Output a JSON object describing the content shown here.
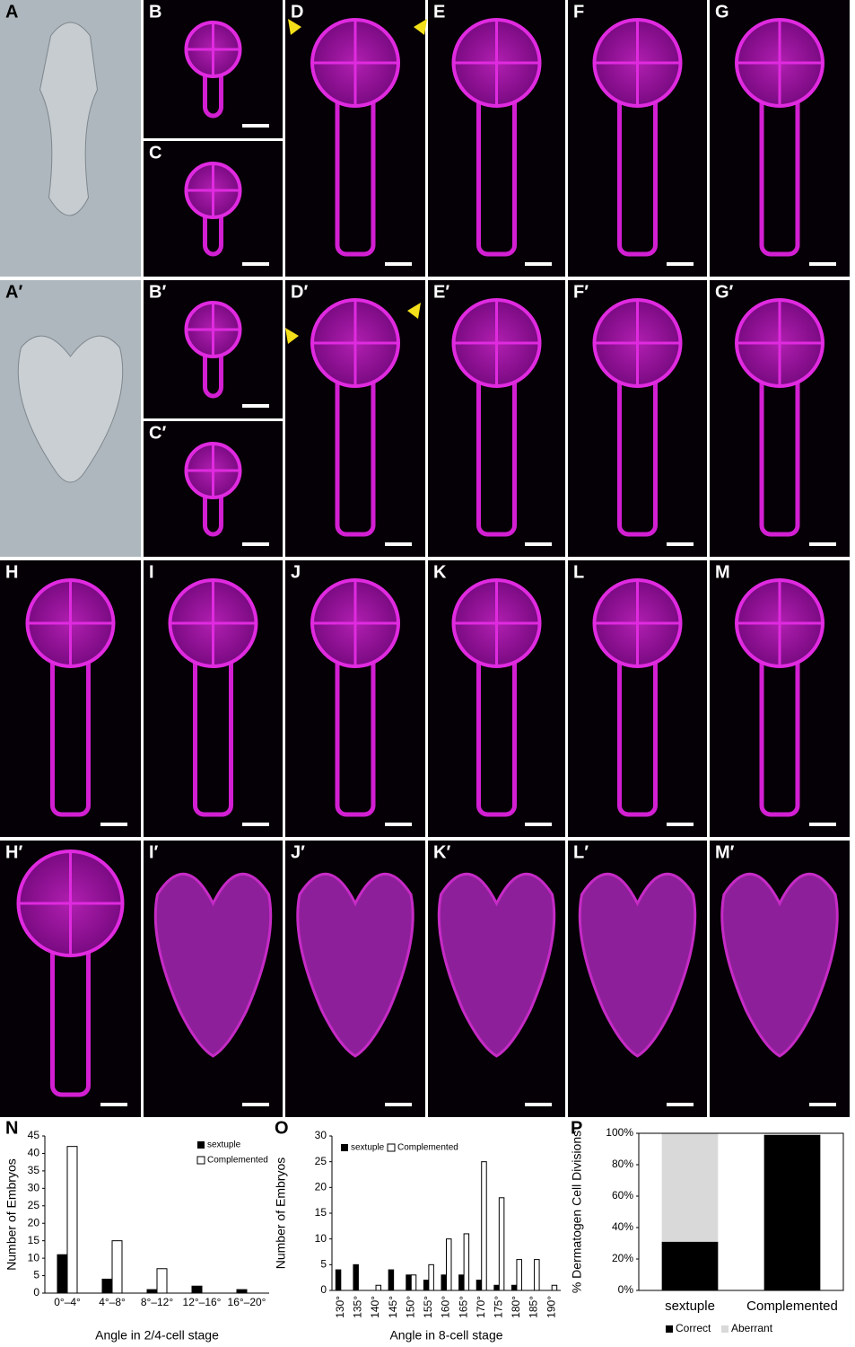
{
  "panels": [
    "A",
    "B",
    "C",
    "D",
    "E",
    "F",
    "G",
    "A′",
    "B′",
    "C′",
    "D′",
    "E′",
    "F′",
    "G′",
    "H",
    "I",
    "J",
    "K",
    "L",
    "M",
    "H′",
    "I′",
    "J′",
    "K′",
    "L′",
    "M′"
  ],
  "chart_data": [
    {
      "type": "bar",
      "label": "N",
      "xlabel": "Angle in 2/4-cell stage",
      "ylabel": "Number of Embryos",
      "categories": [
        "0°–4°",
        "4°–8°",
        "8°–12°",
        "12°–16°",
        "16°–20°"
      ],
      "series": [
        {
          "name": "sextuple",
          "color": "#000000",
          "values": [
            11,
            4,
            1,
            2,
            1
          ]
        },
        {
          "name": "Complemented",
          "color": "#ffffff",
          "values": [
            42,
            15,
            7,
            0,
            0
          ]
        }
      ],
      "ylim": [
        0,
        45
      ],
      "yticks": [
        0,
        5,
        10,
        15,
        20,
        25,
        30,
        35,
        40,
        45
      ],
      "legend": "top-right"
    },
    {
      "type": "bar",
      "label": "O",
      "xlabel": "Angle in 8-cell stage",
      "ylabel": "Number of Embryos",
      "categories": [
        "130°",
        "135°",
        "140°",
        "145°",
        "150°",
        "155°",
        "160°",
        "165°",
        "170°",
        "175°",
        "180°",
        "185°",
        "190°"
      ],
      "series": [
        {
          "name": "sextuple",
          "color": "#000000",
          "values": [
            4,
            5,
            0,
            4,
            3,
            2,
            3,
            3,
            2,
            1,
            1,
            0,
            0
          ]
        },
        {
          "name": "Complemented",
          "color": "#ffffff",
          "values": [
            0,
            0,
            1,
            0,
            3,
            5,
            10,
            11,
            25,
            18,
            6,
            6,
            1
          ]
        }
      ],
      "ylim": [
        0,
        30
      ],
      "yticks": [
        0,
        5,
        10,
        15,
        20,
        25,
        30
      ],
      "legend": "top-left"
    },
    {
      "type": "stacked-bar",
      "label": "P",
      "ylabel": "% Dermatogen Cell Divisions",
      "categories": [
        "sextuple",
        "Complemented"
      ],
      "series": [
        {
          "name": "Correct",
          "color": "#000000",
          "values": [
            31,
            99
          ]
        },
        {
          "name": "Aberrant",
          "color": "#d9d9d9",
          "values": [
            69,
            1
          ]
        }
      ],
      "ylim": [
        0,
        100
      ],
      "yticks": [
        {
          "value": 0,
          "label": "0%"
        },
        {
          "value": 20,
          "label": "20%"
        },
        {
          "value": 40,
          "label": "40%"
        },
        {
          "value": 60,
          "label": "60%"
        },
        {
          "value": 80,
          "label": "80%"
        },
        {
          "value": 100,
          "label": "100%"
        }
      ],
      "legend": "bottom"
    }
  ]
}
